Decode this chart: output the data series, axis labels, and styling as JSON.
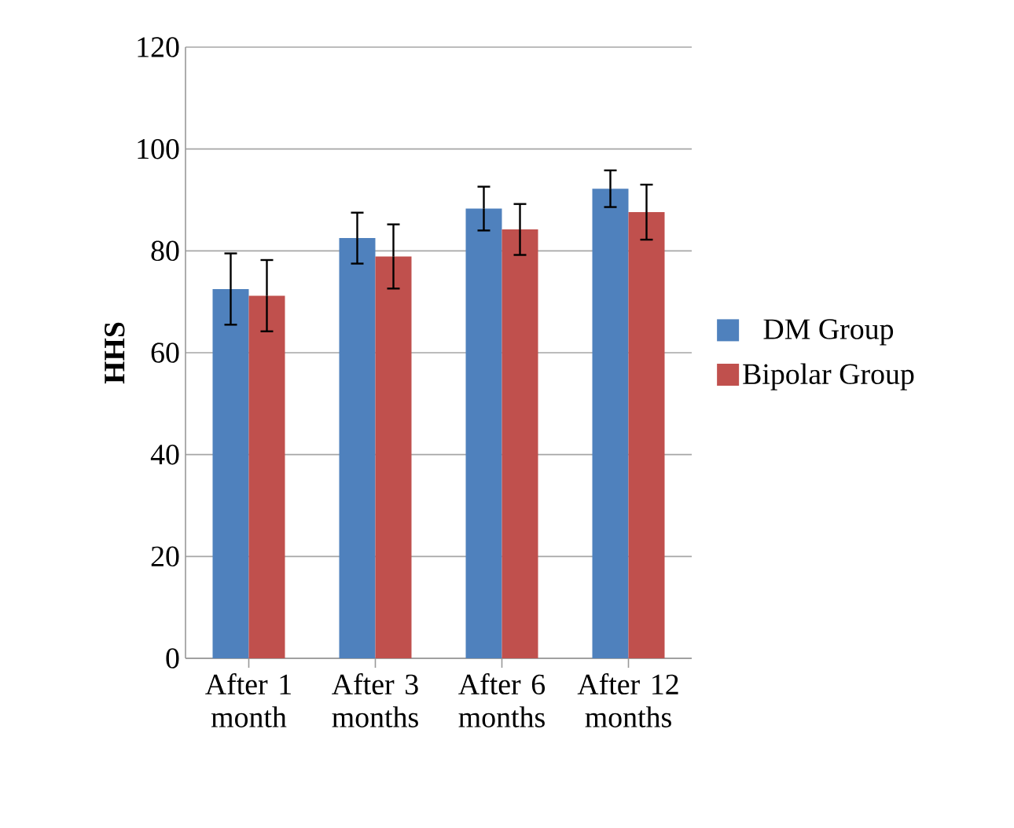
{
  "chart_data": {
    "type": "bar",
    "ylabel": "HHS",
    "categories": [
      "After 1 month",
      "After 3 months",
      "After 6 months",
      "After 12 months"
    ],
    "series": [
      {
        "name": "DM Group",
        "color": "#4f81bd",
        "values": [
          72.5,
          82.5,
          88.3,
          92.2
        ],
        "errors": [
          7,
          5,
          4.3,
          3.6
        ]
      },
      {
        "name": "Bipolar Group",
        "color": "#c0504d",
        "values": [
          71.2,
          78.9,
          84.2,
          87.6
        ],
        "errors": [
          7,
          6.3,
          5,
          5.4
        ]
      }
    ],
    "ylim": [
      0,
      120
    ],
    "yticks": [
      0,
      20,
      40,
      60,
      80,
      100,
      120
    ],
    "grid": "y",
    "legend": "right"
  }
}
